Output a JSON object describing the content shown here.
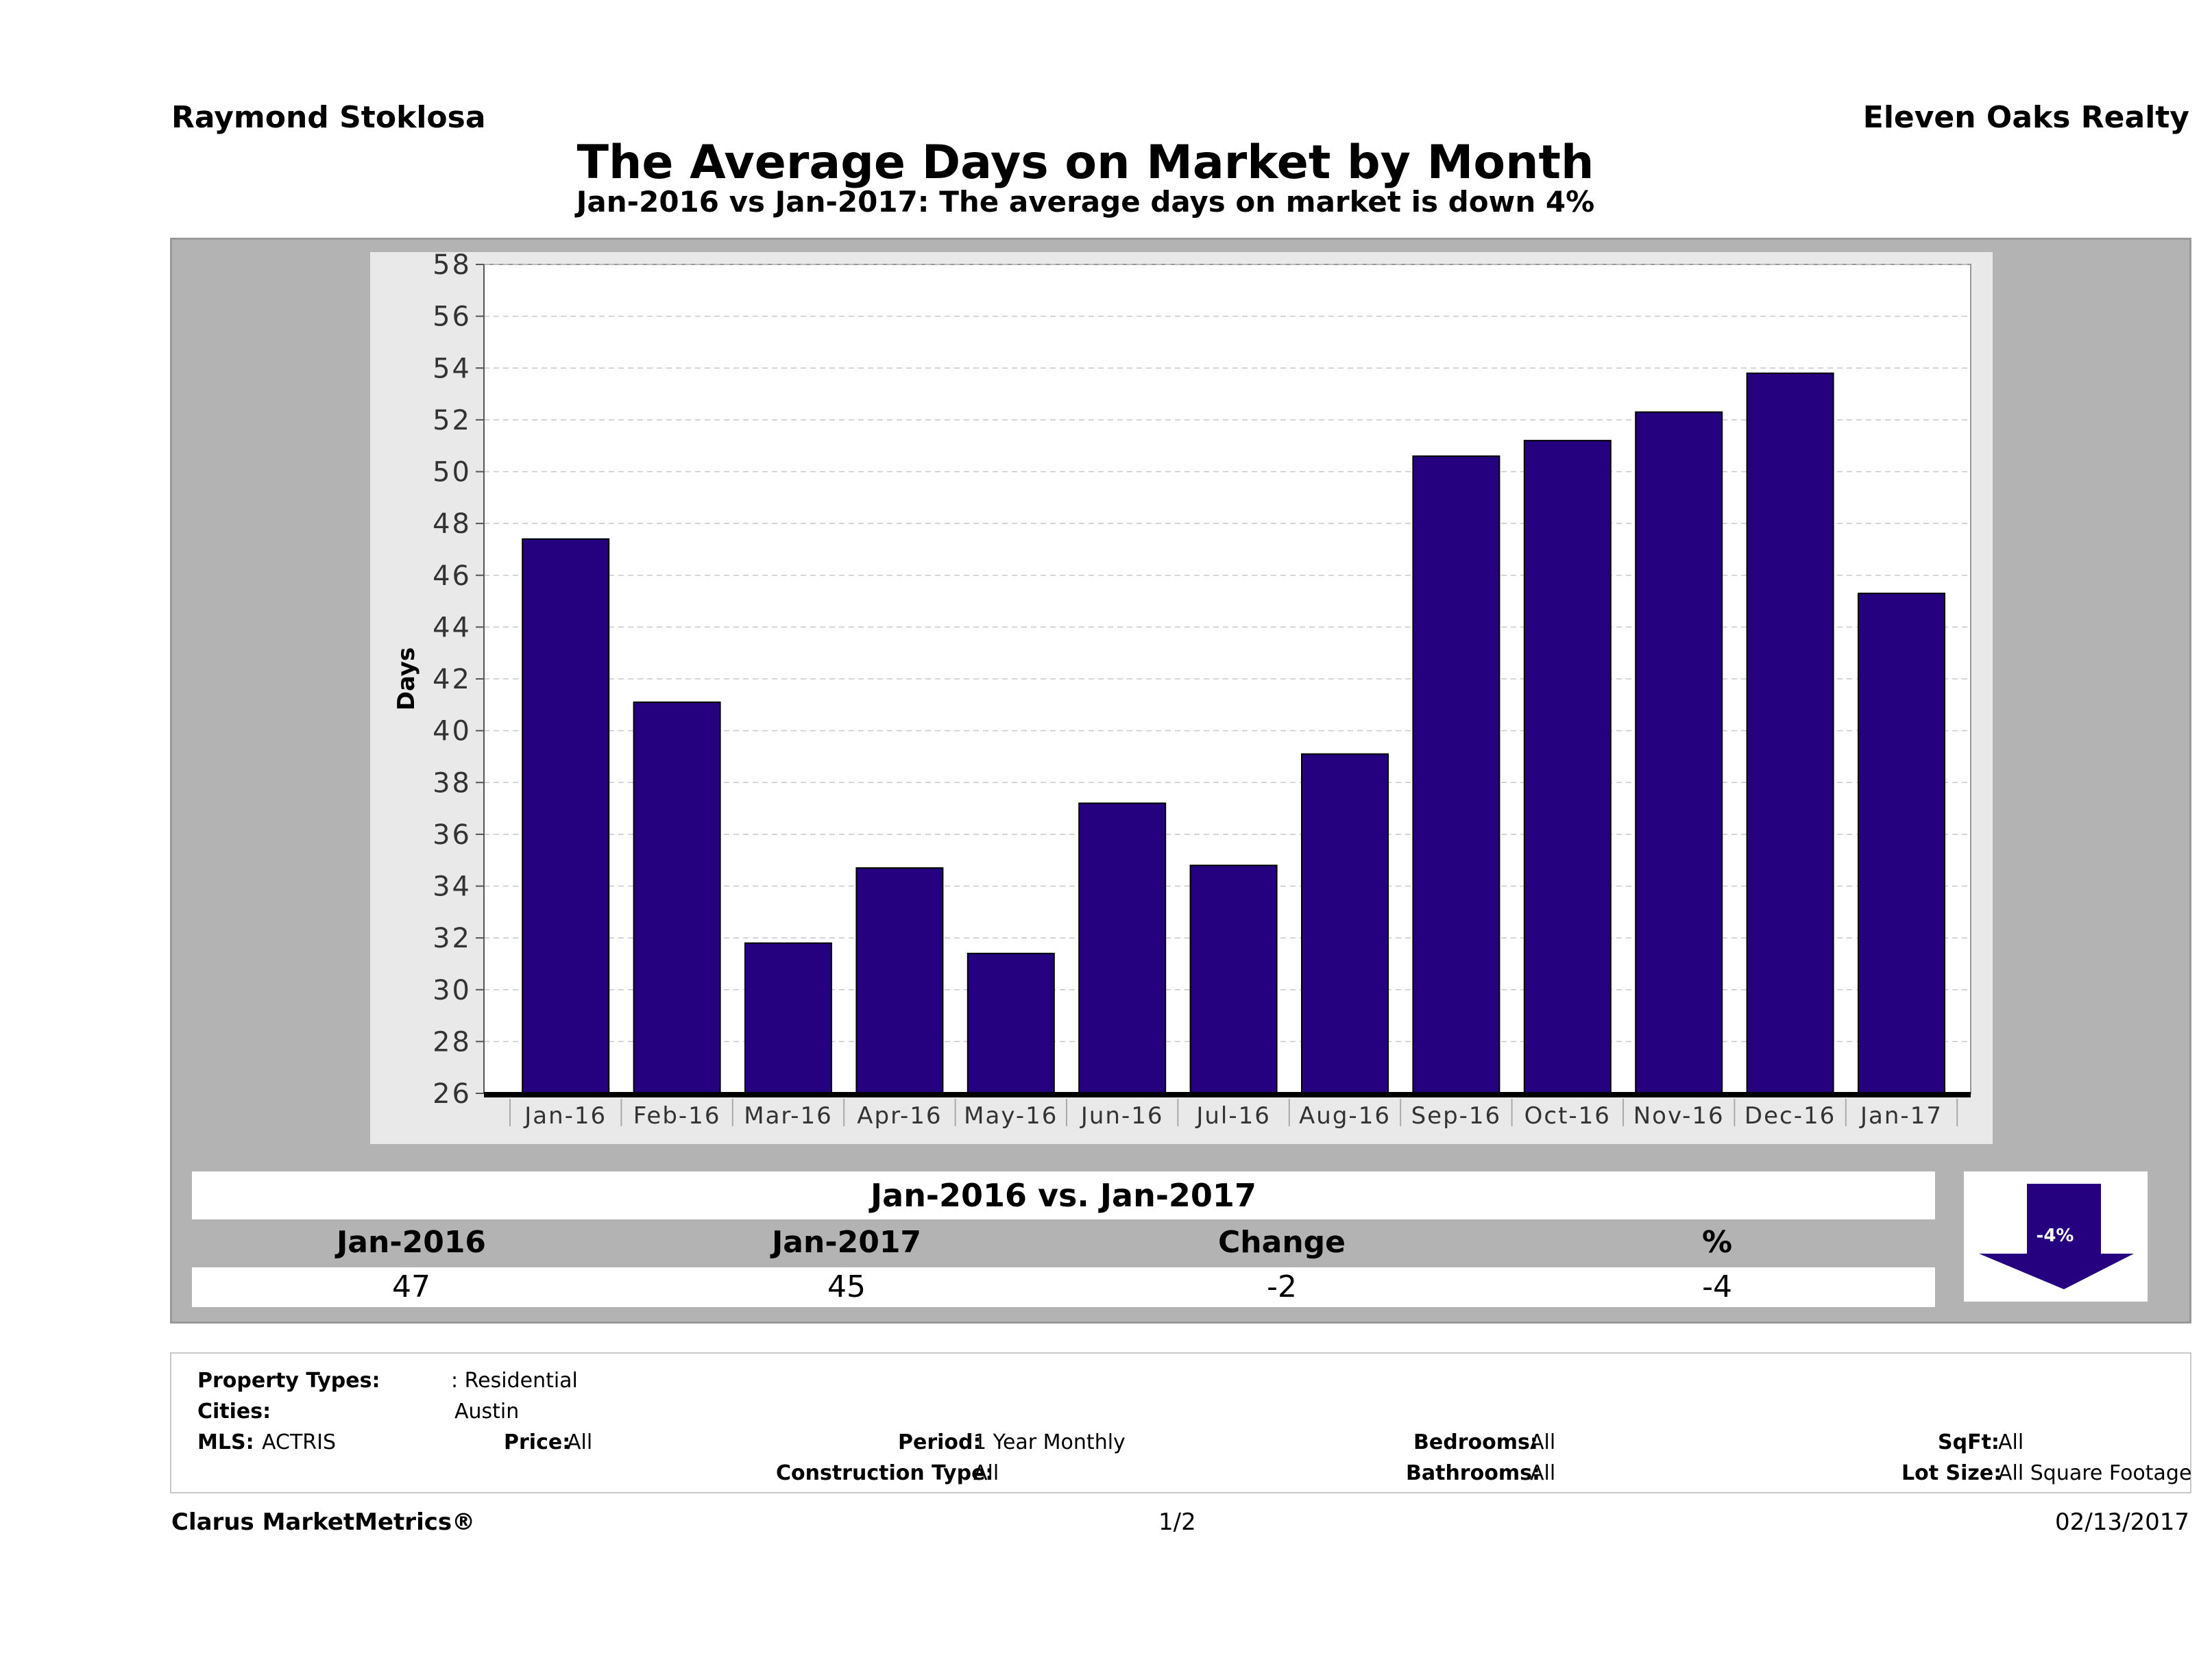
{
  "header": {
    "agent": "Raymond Stoklosa",
    "brokerage": "Eleven Oaks Realty",
    "title": "The Average Days on Market by Month",
    "subtitle": "Jan-2016 vs Jan-2017: The average days on market is down 4%"
  },
  "chart_data": {
    "type": "bar",
    "title": "The Average Days on Market by Month",
    "xlabel": "",
    "ylabel": "Days",
    "ylim": [
      26,
      58
    ],
    "yticks": [
      26,
      28,
      30,
      32,
      34,
      36,
      38,
      40,
      42,
      44,
      46,
      48,
      50,
      52,
      54,
      56,
      58
    ],
    "grid": true,
    "categories": [
      "Jan-16",
      "Feb-16",
      "Mar-16",
      "Apr-16",
      "May-16",
      "Jun-16",
      "Jul-16",
      "Aug-16",
      "Sep-16",
      "Oct-16",
      "Nov-16",
      "Dec-16",
      "Jan-17"
    ],
    "values": [
      47.4,
      41.1,
      31.8,
      34.7,
      31.4,
      37.2,
      34.8,
      39.1,
      50.6,
      51.2,
      52.3,
      53.8,
      45.3
    ],
    "bar_color": "#25007f"
  },
  "comparison": {
    "heading": "Jan-2016 vs. Jan-2017",
    "headers": [
      "Jan-2016",
      "Jan-2017",
      "Change",
      "%"
    ],
    "values": [
      "47",
      "45",
      "-2",
      "-4"
    ],
    "indicator": "-4%",
    "indicator_color": "#25007f"
  },
  "filters": {
    "property_types_label": "Property Types:",
    "property_types_value": ": Residential",
    "cities_label": "Cities:",
    "cities_value": "Austin",
    "mls_label": "MLS:",
    "mls_value": "ACTRIS",
    "price_label": "Price:",
    "price_value": "All",
    "period_label": "Period:",
    "period_value": "1 Year Monthly",
    "construction_label": "Construction Type:",
    "construction_value": "All",
    "bedrooms_label": "Bedrooms:",
    "bedrooms_value": "All",
    "bathrooms_label": "Bathrooms:",
    "bathrooms_value": "All",
    "sqft_label": "SqFt:",
    "sqft_value": "All",
    "lotsize_label": "Lot Size:",
    "lotsize_value": "All Square Footage"
  },
  "footer": {
    "brand": "Clarus MarketMetrics®",
    "page": "1/2",
    "date": "02/13/2017"
  }
}
